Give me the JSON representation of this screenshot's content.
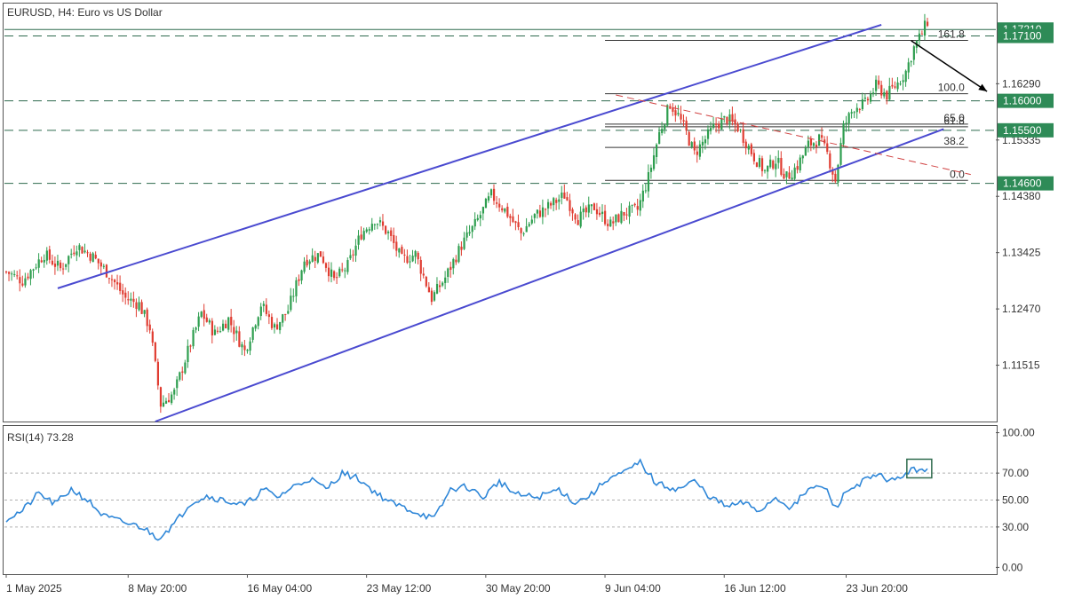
{
  "colors": {
    "bull": "#26a69a",
    "bear": "#ef5350",
    "bull_candle": "#2e9e4f",
    "bear_candle": "#e03c31",
    "channel": "#4a4ad0",
    "level_line": "#2f6b4e",
    "badge": "#2e8b57",
    "rsi_line": "#2f87d8",
    "fib_line": "#333333",
    "trend_dashed": "#d04040",
    "grid": "#b0b0b0",
    "border": "#555555"
  },
  "chart_data": [
    {
      "type": "candlestick",
      "title": "EURUSD, H4:  Euro vs US Dollar",
      "ylim": [
        1.1056,
        1.1765
      ],
      "y_ticks": [
        "1.16290",
        "1.15335",
        "1.14380",
        "1.13425",
        "1.12470",
        "1.11515"
      ],
      "y_tick_values": [
        1.1629,
        1.15335,
        1.1438,
        1.13425,
        1.1247,
        1.11515
      ],
      "x_tick_labels": [
        "1 May 2025",
        "8 May 20:00",
        "16 May 04:00",
        "23 May 12:00",
        "30 May 20:00",
        "9 Jun 04:00",
        "16 Jun 12:00",
        "23 Jun 20:00"
      ],
      "x_tick_index": [
        0,
        45,
        89,
        133,
        177,
        221,
        265,
        310
      ],
      "bar_count": 355,
      "close_path": [
        [
          0,
          1.131
        ],
        [
          6,
          1.1295
        ],
        [
          14,
          1.134
        ],
        [
          20,
          1.1315
        ],
        [
          26,
          1.1355
        ],
        [
          32,
          1.1335
        ],
        [
          38,
          1.1305
        ],
        [
          44,
          1.1265
        ],
        [
          49,
          1.1255
        ],
        [
          53,
          1.1215
        ],
        [
          57,
          1.1085
        ],
        [
          62,
          1.1105
        ],
        [
          67,
          1.1175
        ],
        [
          72,
          1.124
        ],
        [
          77,
          1.1205
        ],
        [
          82,
          1.123
        ],
        [
          88,
          1.1175
        ],
        [
          94,
          1.1255
        ],
        [
          99,
          1.1215
        ],
        [
          104,
          1.1245
        ],
        [
          110,
          1.133
        ],
        [
          116,
          1.134
        ],
        [
          121,
          1.1295
        ],
        [
          126,
          1.132
        ],
        [
          131,
          1.1375
        ],
        [
          136,
          1.14
        ],
        [
          141,
          1.1375
        ],
        [
          146,
          1.133
        ],
        [
          151,
          1.134
        ],
        [
          157,
          1.1265
        ],
        [
          162,
          1.13
        ],
        [
          168,
          1.1355
        ],
        [
          173,
          1.139
        ],
        [
          179,
          1.144
        ],
        [
          184,
          1.1415
        ],
        [
          190,
          1.1375
        ],
        [
          195,
          1.1405
        ],
        [
          200,
          1.142
        ],
        [
          206,
          1.144
        ],
        [
          211,
          1.14
        ],
        [
          217,
          1.142
        ],
        [
          223,
          1.139
        ],
        [
          228,
          1.141
        ],
        [
          233,
          1.1415
        ],
        [
          237,
          1.147
        ],
        [
          241,
          1.1545
        ],
        [
          245,
          1.1595
        ],
        [
          248,
          1.1575
        ],
        [
          251,
          1.1545
        ],
        [
          254,
          1.151
        ],
        [
          258,
          1.1535
        ],
        [
          262,
          1.156
        ],
        [
          266,
          1.157
        ],
        [
          270,
          1.1555
        ],
        [
          273,
          1.153
        ],
        [
          276,
          1.1505
        ],
        [
          280,
          1.148
        ],
        [
          284,
          1.15
        ],
        [
          288,
          1.147
        ],
        [
          292,
          1.149
        ],
        [
          296,
          1.1525
        ],
        [
          300,
          1.1535
        ],
        [
          303,
          1.151
        ],
        [
          306,
          1.1465
        ],
        [
          309,
          1.1555
        ],
        [
          313,
          1.159
        ],
        [
          317,
          1.1595
        ],
        [
          321,
          1.1625
        ],
        [
          325,
          1.161
        ],
        [
          329,
          1.163
        ],
        [
          332,
          1.165
        ],
        [
          335,
          1.169
        ],
        [
          338,
          1.1715
        ],
        [
          340,
          1.1735
        ]
      ],
      "price_badges": [
        {
          "label": "1.17210",
          "value": 1.1721
        },
        {
          "label": "1.17100",
          "value": 1.171
        },
        {
          "label": "1.16000",
          "value": 1.16
        },
        {
          "label": "1.15500",
          "value": 1.155
        },
        {
          "label": "1.14600",
          "value": 1.146
        }
      ],
      "dashed_levels": [
        1.171,
        1.16,
        1.155,
        1.146
      ],
      "solid_levels": [
        1.1721
      ],
      "fibonacci": {
        "start_index": 221,
        "end_index": 355,
        "levels": [
          {
            "label": "161.8",
            "value": 1.17025
          },
          {
            "label": "100.0",
            "value": 1.1612
          },
          {
            "label": "61.8",
            "value": 1.1556
          },
          {
            "label": "65.0",
            "value": 1.15605
          },
          {
            "label": "38.2",
            "value": 1.1521
          },
          {
            "label": "0.0",
            "value": 1.1465
          }
        ]
      },
      "channel": {
        "upper": [
          [
            19,
            1.1282
          ],
          [
            323,
            1.1729
          ]
        ],
        "lower": [
          [
            55,
            1.1056
          ],
          [
            346,
            1.1552
          ]
        ]
      },
      "descending_trendline": [
        [
          225,
          1.161
        ],
        [
          356,
          1.1475
        ]
      ],
      "projection_arrow": [
        [
          334,
          1.1702
        ],
        [
          362,
          1.1616
        ]
      ]
    },
    {
      "type": "line",
      "title": "RSI(14) 73.28",
      "ylim": [
        -5,
        105
      ],
      "y_ticks": [
        "100.00",
        "70.00",
        "50.00",
        "30.00",
        "0.00"
      ],
      "y_tick_values": [
        100,
        70,
        50,
        30,
        0
      ],
      "dotted_levels": [
        70,
        50,
        30
      ],
      "series": [
        {
          "values_path": [
            [
              0,
              36
            ],
            [
              6,
              42
            ],
            [
              12,
              55
            ],
            [
              18,
              47
            ],
            [
              24,
              58
            ],
            [
              30,
              50
            ],
            [
              36,
              38
            ],
            [
              44,
              33
            ],
            [
              50,
              30
            ],
            [
              56,
              22
            ],
            [
              62,
              32
            ],
            [
              68,
              48
            ],
            [
              74,
              53
            ],
            [
              80,
              50
            ],
            [
              88,
              46
            ],
            [
              95,
              58
            ],
            [
              100,
              52
            ],
            [
              106,
              60
            ],
            [
              112,
              66
            ],
            [
              118,
              58
            ],
            [
              124,
              70
            ],
            [
              130,
              66
            ],
            [
              136,
              56
            ],
            [
              142,
              48
            ],
            [
              150,
              42
            ],
            [
              158,
              36
            ],
            [
              164,
              58
            ],
            [
              170,
              60
            ],
            [
              176,
              52
            ],
            [
              182,
              64
            ],
            [
              188,
              54
            ],
            [
              196,
              52
            ],
            [
              204,
              58
            ],
            [
              210,
              48
            ],
            [
              216,
              54
            ],
            [
              222,
              66
            ],
            [
              228,
              70
            ],
            [
              234,
              78
            ],
            [
              240,
              62
            ],
            [
              248,
              58
            ],
            [
              254,
              64
            ],
            [
              260,
              52
            ],
            [
              266,
              45
            ],
            [
              272,
              48
            ],
            [
              278,
              42
            ],
            [
              284,
              52
            ],
            [
              290,
              44
            ],
            [
              296,
              58
            ],
            [
              302,
              60
            ],
            [
              306,
              44
            ],
            [
              310,
              56
            ],
            [
              316,
              64
            ],
            [
              322,
              68
            ],
            [
              328,
              64
            ],
            [
              332,
              70
            ],
            [
              336,
              73
            ],
            [
              340,
              73.28
            ]
          ],
          "marker_box_index": 337
        }
      ]
    }
  ]
}
